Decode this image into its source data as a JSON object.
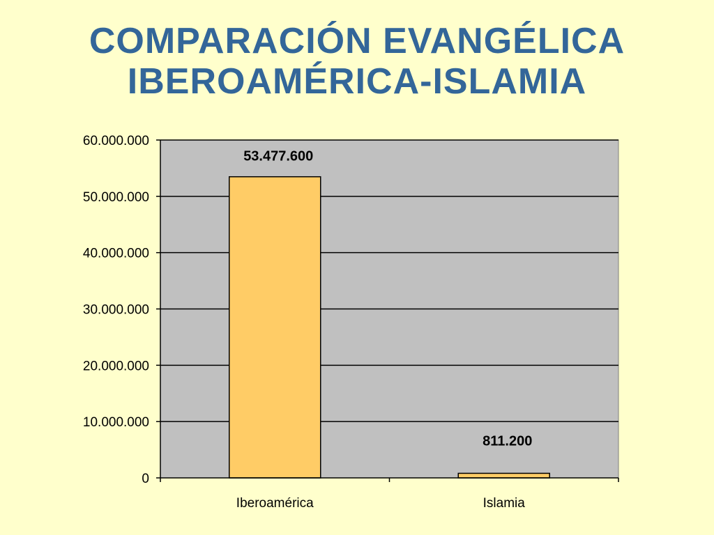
{
  "title": {
    "line1": "COMPARACIÓN EVANGÉLICA",
    "line2": "IBEROAMÉRICA-ISLAMIA"
  },
  "colors": {
    "background": "#FFFFCC",
    "title": "#336699",
    "plot_area": "#C0C0C0",
    "bar_fill": "#FFCC66",
    "bar_stroke": "#000000",
    "gridline": "#000000"
  },
  "chart_data": {
    "type": "bar",
    "categories": [
      "Iberoamérica",
      "Islamia"
    ],
    "values": [
      53477600,
      811200
    ],
    "data_labels": [
      "53.477.600",
      "811.200"
    ],
    "ylim": [
      0,
      60000000
    ],
    "yticks": [
      0,
      10000000,
      20000000,
      30000000,
      40000000,
      50000000,
      60000000
    ],
    "ytick_labels": [
      "0",
      "10.000.000",
      "20.000.000",
      "30.000.000",
      "40.000.000",
      "50.000.000",
      "60.000.000"
    ],
    "grid": true,
    "legend": "none"
  }
}
